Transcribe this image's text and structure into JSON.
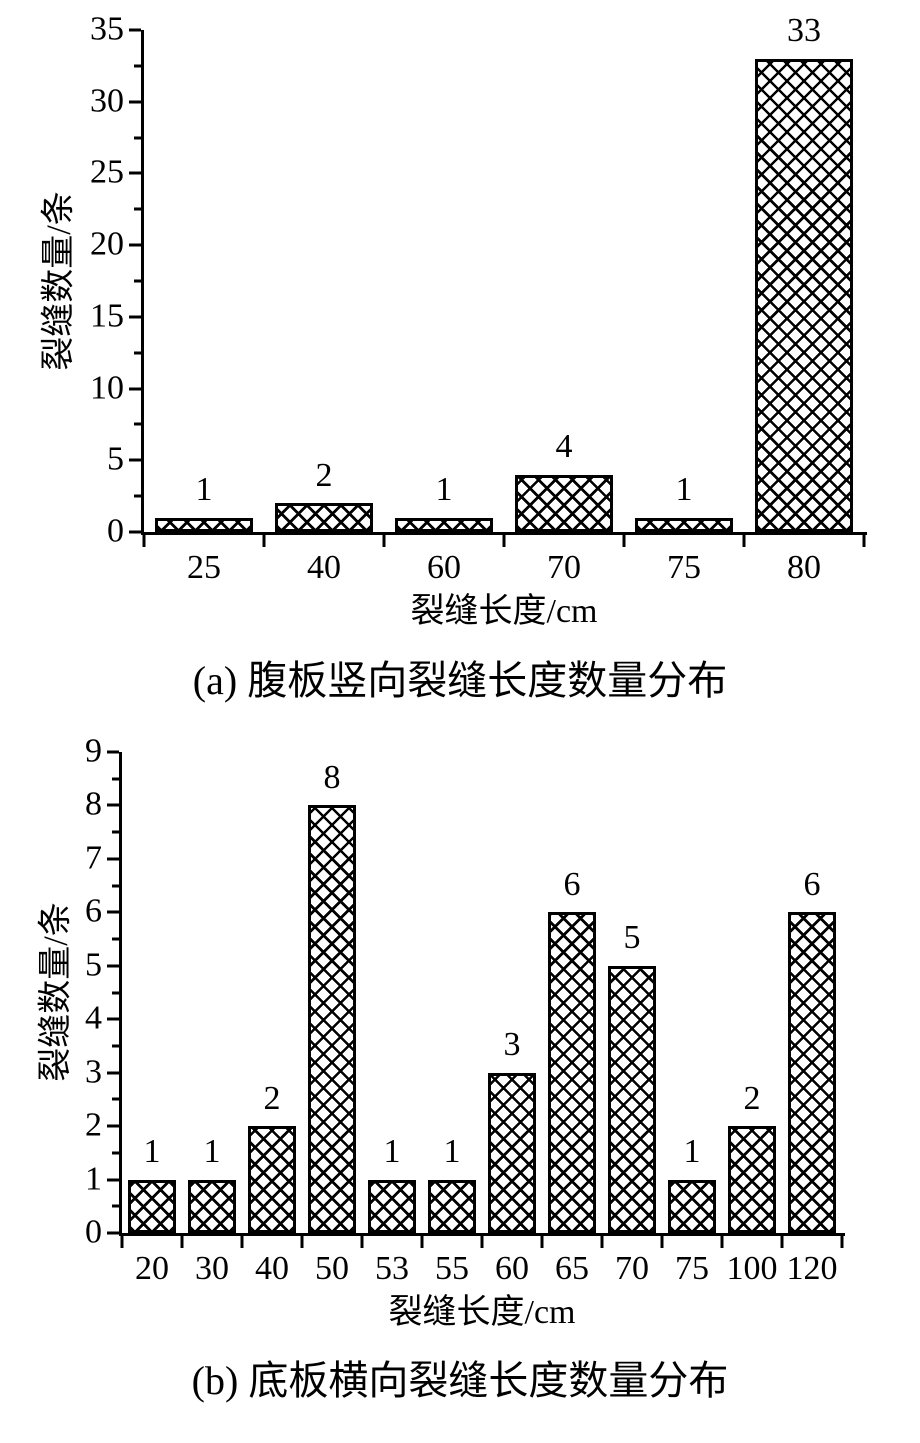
{
  "figure_background": "#ffffff",
  "ink_color": "#000000",
  "chart_data": [
    {
      "id": "a",
      "type": "bar",
      "caption": "(a) 腹板竖向裂缝长度数量分布",
      "xlabel": "裂缝长度/cm",
      "ylabel": "裂缝数量/条",
      "categories": [
        "25",
        "40",
        "60",
        "70",
        "75",
        "80"
      ],
      "values": [
        1,
        2,
        1,
        4,
        1,
        33
      ],
      "bar_labels": [
        "1",
        "2",
        "1",
        "4",
        "1",
        "33"
      ],
      "ylim": [
        0,
        35
      ],
      "ytick_major": 5,
      "ytick_minor": 2.5,
      "yticklabels": [
        "0",
        "5",
        "10",
        "15",
        "20",
        "25",
        "30",
        "35"
      ],
      "grid": false,
      "legend": "none",
      "hatch": "xx",
      "bar_edge_color": "#000000",
      "bar_fill_color": "#ffffff"
    },
    {
      "id": "b",
      "type": "bar",
      "caption": "(b) 底板横向裂缝长度数量分布",
      "xlabel": "裂缝长度/cm",
      "ylabel": "裂缝数量/条",
      "categories": [
        "20",
        "30",
        "40",
        "50",
        "53",
        "55",
        "60",
        "65",
        "70",
        "75",
        "100",
        "120"
      ],
      "values": [
        1,
        1,
        2,
        8,
        1,
        1,
        3,
        6,
        5,
        1,
        2,
        6
      ],
      "bar_labels": [
        "1",
        "1",
        "2",
        "8",
        "1",
        "1",
        "3",
        "6",
        "5",
        "1",
        "2",
        "6"
      ],
      "ylim": [
        0,
        9
      ],
      "ytick_major": 1,
      "ytick_minor": 0.5,
      "yticklabels": [
        "0",
        "1",
        "2",
        "3",
        "4",
        "5",
        "6",
        "7",
        "8",
        "9"
      ],
      "grid": false,
      "legend": "none",
      "hatch": "xx",
      "bar_edge_color": "#000000",
      "bar_fill_color": "#ffffff"
    }
  ]
}
